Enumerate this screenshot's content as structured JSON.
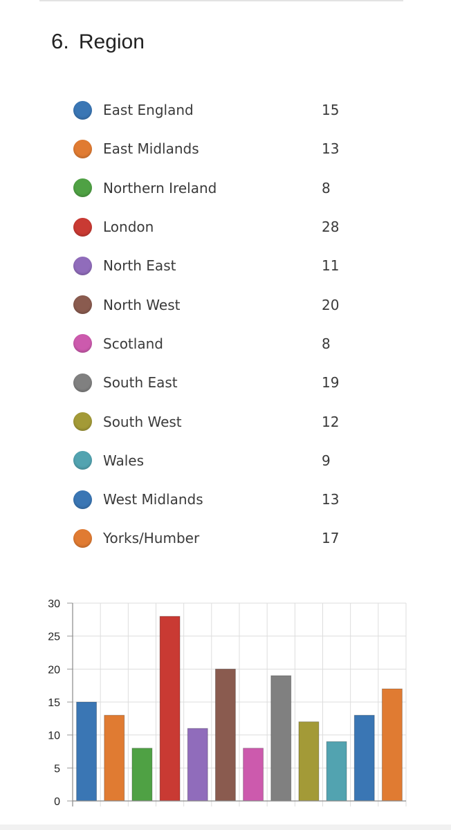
{
  "question": {
    "number": "6.",
    "title": "Region"
  },
  "legend": [
    {
      "label": "East England",
      "value": "15",
      "color": "#3a76b4"
    },
    {
      "label": "East Midlands",
      "value": "13",
      "color": "#e07b32"
    },
    {
      "label": "Northern Ireland",
      "value": "8",
      "color": "#4fa144"
    },
    {
      "label": "London",
      "value": "28",
      "color": "#c93a33"
    },
    {
      "label": "North East",
      "value": "11",
      "color": "#906cbb"
    },
    {
      "label": "North West",
      "value": "20",
      "color": "#8a5b4f"
    },
    {
      "label": "Scotland",
      "value": "8",
      "color": "#cc5aad"
    },
    {
      "label": "South East",
      "value": "19",
      "color": "#808080"
    },
    {
      "label": "South West",
      "value": "12",
      "color": "#a39a37"
    },
    {
      "label": "Wales",
      "value": "9",
      "color": "#52a3b0"
    },
    {
      "label": "West Midlands",
      "value": "13",
      "color": "#3a76b4"
    },
    {
      "label": "Yorks/Humber",
      "value": "17",
      "color": "#e07b32"
    }
  ],
  "chart_data": {
    "type": "bar",
    "categories": [
      "East England",
      "East Midlands",
      "Northern Ireland",
      "London",
      "North East",
      "North West",
      "Scotland",
      "South East",
      "South West",
      "Wales",
      "West Midlands",
      "Yorks/Humber"
    ],
    "values": [
      15,
      13,
      8,
      28,
      11,
      20,
      8,
      19,
      12,
      9,
      13,
      17
    ],
    "colors": [
      "#3a76b4",
      "#e07b32",
      "#4fa144",
      "#c93a33",
      "#906cbb",
      "#8a5b4f",
      "#cc5aad",
      "#808080",
      "#a39a37",
      "#52a3b0",
      "#3a76b4",
      "#e07b32"
    ],
    "ylim": [
      0,
      30
    ],
    "yticks": [
      "0",
      "5",
      "10",
      "15",
      "20",
      "25",
      "30"
    ],
    "grid": true,
    "legend": "none"
  }
}
